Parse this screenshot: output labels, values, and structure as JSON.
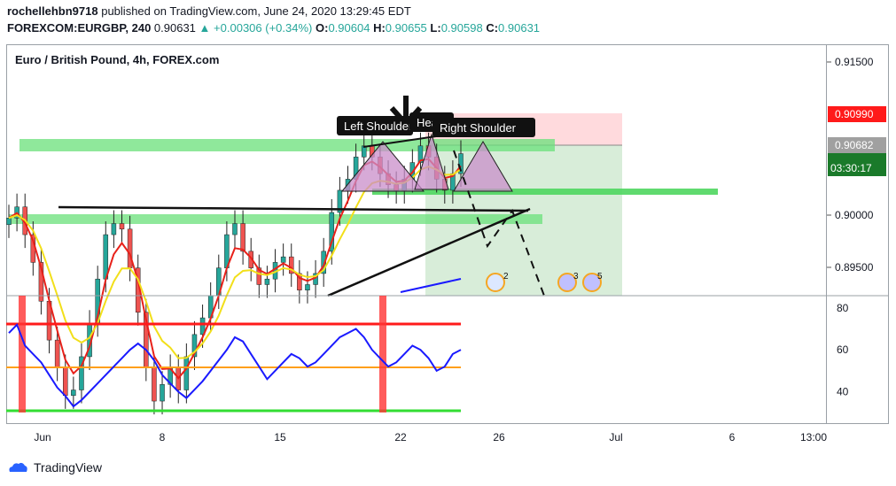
{
  "header": {
    "line1_user": "rochellehbn9718",
    "line1_rest": " published on TradingView.com, June 24, 2020 13:29:45 EDT",
    "symbol": "FOREXCOM:EURGBP, 240",
    "last": "0.90631",
    "change": "+0.00306 (+0.34%)",
    "o_label": "O:",
    "o": "0.90604",
    "h_label": "H:",
    "h": "0.90655",
    "l_label": "L:",
    "l": "0.90598",
    "c_label": "C:",
    "c": "0.90631"
  },
  "chart_title": "Euro / British Pound, 4h, FOREX.com",
  "price_axis": {
    "ticks": [
      "0.91500",
      "0.90000",
      "0.89500"
    ],
    "badge_red": "0.90990",
    "badge_gray": "0.90682",
    "badge_green_time": "03:30:17"
  },
  "rsi_axis": {
    "ticks": [
      "80",
      "60",
      "40"
    ]
  },
  "time_axis": {
    "ticks": [
      "Jun",
      "8",
      "15",
      "22",
      "26",
      "Jul",
      "6",
      "13:00"
    ]
  },
  "annotations": {
    "left_shoulder": "Left Shoulder",
    "head": "Head",
    "right_shoulder": "Right Shoulder",
    "event_1": "2",
    "event_2": "3",
    "event_3": "5"
  },
  "colors": {
    "up": "#26a69a",
    "down": "#ef5350",
    "zone_green": "#69e07a",
    "rsi_line": "#1a1aff",
    "rsi_upper": "#ff1a1a",
    "rsi_mid": "#ff9f1a",
    "rsi_lower": "#33dd33",
    "ema_red": "#e8211a",
    "ema_yellow": "#f2df1a",
    "pattern": "#c98ec9"
  },
  "chart_data": {
    "type": "line",
    "title": "Euro / British Pound, 4h, FOREX.com",
    "price_series_close": [
      0.9005,
      0.9015,
      0.899,
      0.8965,
      0.893,
      0.8895,
      0.887,
      0.8845,
      0.885,
      0.888,
      0.891,
      0.895,
      0.899,
      0.9,
      0.8995,
      0.896,
      0.892,
      0.887,
      0.884,
      0.8855,
      0.887,
      0.885,
      0.888,
      0.89,
      0.8915,
      0.8935,
      0.896,
      0.899,
      0.9,
      0.8975,
      0.896,
      0.8945,
      0.895,
      0.8965,
      0.897,
      0.8955,
      0.894,
      0.8945,
      0.8955,
      0.8975,
      0.901,
      0.903,
      0.904,
      0.906,
      0.907,
      0.906,
      0.9045,
      0.9035,
      0.903,
      0.904,
      0.9055,
      0.907,
      0.906,
      0.904,
      0.903,
      0.9045,
      0.9063
    ],
    "rsi_values": [
      68,
      72,
      62,
      58,
      54,
      48,
      42,
      38,
      33,
      36,
      40,
      44,
      48,
      52,
      56,
      60,
      63,
      60,
      55,
      48,
      44,
      40,
      37,
      41,
      45,
      50,
      55,
      60,
      66,
      64,
      58,
      52,
      46,
      50,
      54,
      58,
      56,
      52,
      54,
      58,
      62,
      66,
      68,
      70,
      66,
      60,
      56,
      52,
      54,
      58,
      62,
      60,
      56,
      50,
      52,
      58,
      60
    ],
    "rsi_levels": [
      70,
      50,
      30
    ],
    "ylim": [
      0.8935,
      0.916
    ],
    "rsi_ylim": [
      25,
      85
    ],
    "x_ticks": [
      "Jun",
      "8",
      "15",
      "22",
      "26",
      "Jul",
      "6",
      "13:00"
    ],
    "grid": false
  }
}
